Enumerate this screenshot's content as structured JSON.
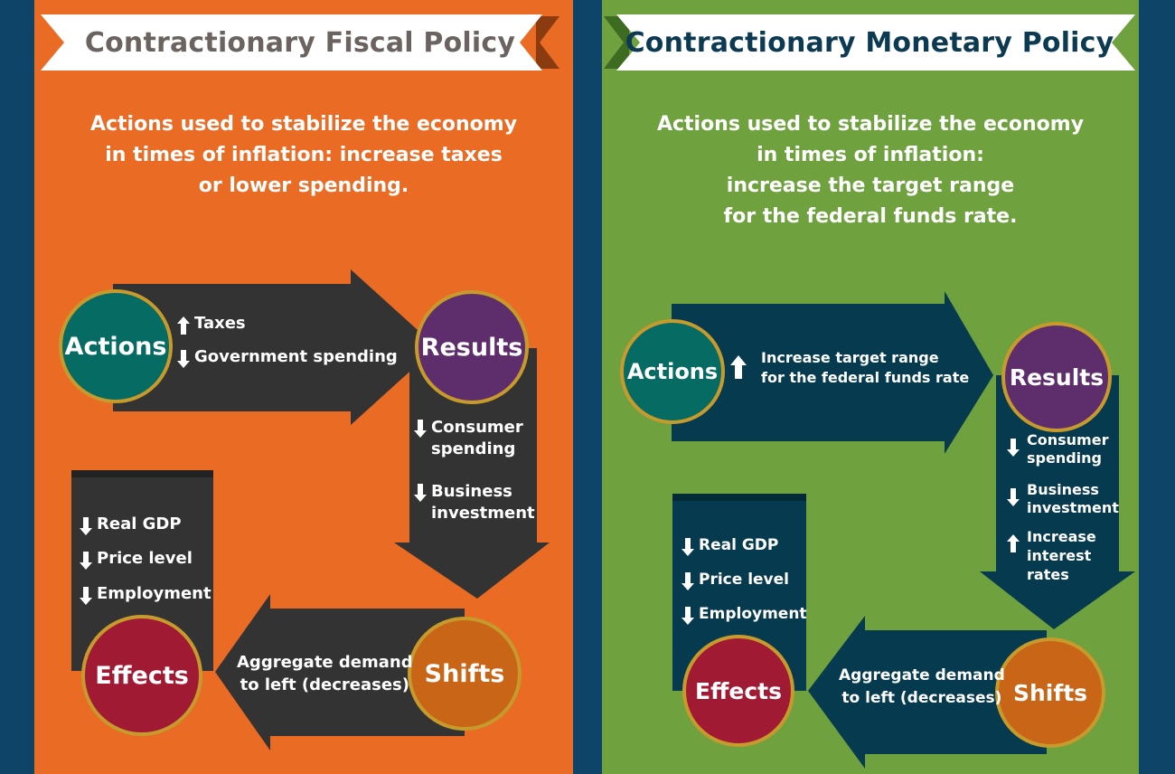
{
  "colors": {
    "background": "#0d4468",
    "fiscal_panel": "#e96b24",
    "monetary_panel": "#6fa13f",
    "fiscal_arrows": "#333333",
    "monetary_arrows": "#063a4e",
    "actions_circle": "#066b63",
    "results_circle": "#5e2d6c",
    "shifts_circle": "#c96516",
    "effects_circle": "#a11a34",
    "circle_border": "#c79a2c"
  },
  "fiscal": {
    "title": "Contractionary Fiscal Policy",
    "description": [
      "Actions used to stabilize the economy",
      "in times of inflation: increase taxes",
      "or lower spending."
    ],
    "actions": {
      "label": "Actions",
      "items": [
        {
          "dir": "up",
          "text": "Taxes",
          "icon": "arrow-up-icon"
        },
        {
          "dir": "down",
          "text": "Government spending",
          "icon": "arrow-down-icon"
        }
      ]
    },
    "results": {
      "label": "Results",
      "items": [
        {
          "dir": "down",
          "text": "Consumer\nspending",
          "icon": "arrow-down-icon"
        },
        {
          "dir": "down",
          "text": "Business\ninvestment",
          "icon": "arrow-down-icon"
        }
      ]
    },
    "shifts": {
      "label": "Shifts",
      "text": "Aggregate demand\nto left (decreases)"
    },
    "effects": {
      "label": "Effects",
      "items": [
        {
          "dir": "down",
          "text": "Real GDP",
          "icon": "arrow-down-icon"
        },
        {
          "dir": "down",
          "text": "Price level",
          "icon": "arrow-down-icon"
        },
        {
          "dir": "down",
          "text": "Employment",
          "icon": "arrow-down-icon"
        }
      ]
    }
  },
  "monetary": {
    "title": "Contractionary Monetary Policy",
    "description": [
      "Actions used to stabilize the economy",
      "in times of inflation:",
      "increase the target range",
      "for the federal funds rate."
    ],
    "actions": {
      "label": "Actions",
      "items": [
        {
          "dir": "up",
          "text": "Increase target range\nfor the federal funds rate",
          "icon": "arrow-up-icon"
        }
      ]
    },
    "results": {
      "label": "Results",
      "items": [
        {
          "dir": "down",
          "text": "Consumer\nspending",
          "icon": "arrow-down-icon"
        },
        {
          "dir": "down",
          "text": "Business\ninvestment",
          "icon": "arrow-down-icon"
        },
        {
          "dir": "up",
          "text": "Increase\ninterest\nrates",
          "icon": "arrow-up-icon"
        }
      ]
    },
    "shifts": {
      "label": "Shifts",
      "text": "Aggregate demand\nto left (decreases)"
    },
    "effects": {
      "label": "Effects",
      "items": [
        {
          "dir": "down",
          "text": "Real GDP",
          "icon": "arrow-down-icon"
        },
        {
          "dir": "down",
          "text": "Price level",
          "icon": "arrow-down-icon"
        },
        {
          "dir": "down",
          "text": "Employment",
          "icon": "arrow-down-icon"
        }
      ]
    }
  }
}
